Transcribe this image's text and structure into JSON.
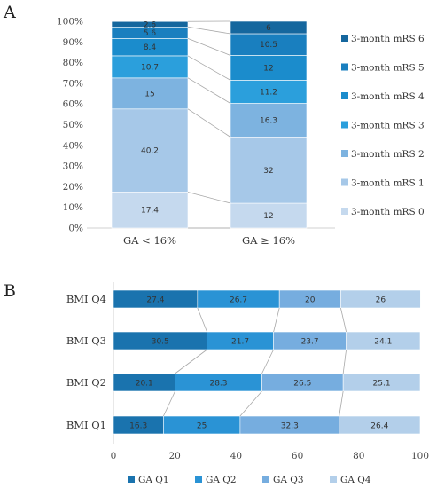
{
  "panels": {
    "a_label": "A",
    "b_label": "B"
  },
  "chart_data": [
    {
      "type": "bar",
      "stacked": true,
      "orientation": "vertical",
      "categories": [
        "GA < 16%",
        "GA ≥ 16%"
      ],
      "ylim": [
        0,
        100
      ],
      "yticks": [
        "0%",
        "10%",
        "20%",
        "30%",
        "40%",
        "50%",
        "60%",
        "70%",
        "80%",
        "90%",
        "100%"
      ],
      "legend_position": "right",
      "series": [
        {
          "name": "3-month mRS 0",
          "values": [
            17.4,
            12
          ],
          "labels": [
            "17.4",
            "12"
          ],
          "color": "#c5d9ee"
        },
        {
          "name": "3-month mRS 1",
          "values": [
            40.2,
            32
          ],
          "labels": [
            "40.2",
            "32"
          ],
          "color": "#a6c8e8"
        },
        {
          "name": "3-month mRS 2",
          "values": [
            15,
            16.3
          ],
          "labels": [
            "15",
            "16.3"
          ],
          "color": "#7db3e0"
        },
        {
          "name": "3-month mRS 3",
          "values": [
            10.7,
            11.2
          ],
          "labels": [
            "10.7",
            "11.2"
          ],
          "color": "#2b9fdc"
        },
        {
          "name": "3-month mRS 4",
          "values": [
            8.4,
            12
          ],
          "labels": [
            "8.4",
            "12"
          ],
          "color": "#1b8ccc"
        },
        {
          "name": "3-month mRS 5",
          "values": [
            5.6,
            10.5
          ],
          "labels": [
            "5.6",
            "10.5"
          ],
          "color": "#197fbf"
        },
        {
          "name": "3-month mRS 6",
          "values": [
            2.6,
            6
          ],
          "labels": [
            "2.6",
            "6"
          ],
          "color": "#15679e"
        }
      ]
    },
    {
      "type": "bar",
      "stacked": true,
      "orientation": "horizontal",
      "categories": [
        "BMI Q1",
        "BMI Q2",
        "BMI Q3",
        "BMI Q4"
      ],
      "xlim": [
        0,
        100
      ],
      "xticks": [
        "0",
        "20",
        "40",
        "60",
        "80",
        "100"
      ],
      "legend_position": "bottom",
      "series": [
        {
          "name": "GA Q1",
          "values": [
            16.3,
            20.1,
            30.5,
            27.4
          ],
          "labels": [
            "16.3",
            "20.1",
            "30.5",
            "27.4"
          ],
          "color": "#1a73ae"
        },
        {
          "name": "GA Q2",
          "values": [
            25,
            28.3,
            21.7,
            26.7
          ],
          "labels": [
            "25",
            "28.3",
            "21.7",
            "26.7"
          ],
          "color": "#2a93d5"
        },
        {
          "name": "GA Q3",
          "values": [
            32.3,
            26.5,
            23.7,
            20
          ],
          "labels": [
            "32.3",
            "26.5",
            "23.7",
            "20"
          ],
          "color": "#76addf"
        },
        {
          "name": "GA Q4",
          "values": [
            26.4,
            25.1,
            24.1,
            26
          ],
          "labels": [
            "26.4",
            "25.1",
            "24.1",
            "26"
          ],
          "color": "#b3cfea"
        }
      ]
    }
  ]
}
